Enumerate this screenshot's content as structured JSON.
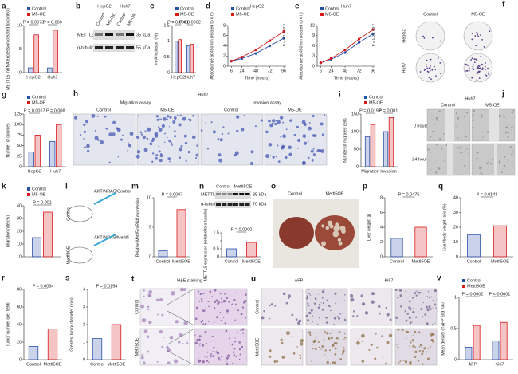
{
  "chart_data": [
    {
      "type": "bar",
      "label": "a",
      "ylabel": "METTL5 mRNA expression (related to control)",
      "categories": [
        "HepG2",
        "Huh7"
      ],
      "series": [
        {
          "name": "Control",
          "color": "#2a4fa8",
          "values": [
            1,
            1
          ]
        },
        {
          "name": "M5-OE",
          "color": "#d7191c",
          "values": [
            8,
            9
          ]
        }
      ],
      "ylim": [
        0,
        10
      ],
      "yticks": [
        0,
        5,
        10
      ],
      "legend": true,
      "annotations": [
        "P = 0.0073",
        "P = 0.006"
      ]
    },
    {
      "type": "bar",
      "label": "c",
      "ylabel": "m⁶A inclusion (%)",
      "categories": [
        "HepG2",
        "Huh7"
      ],
      "series": [
        {
          "name": "Control",
          "color": "#2a4fa8",
          "values": [
            1,
            0.85
          ]
        },
        {
          "name": "M5-OE",
          "color": "#d7191c",
          "values": [
            1.05,
            0.9
          ]
        }
      ],
      "ylim": [
        0,
        1.5
      ],
      "yticks": [
        0,
        0.5,
        1,
        1.5
      ],
      "legend": true,
      "annotations": [
        "P = 0.0001",
        "P = 0.0002"
      ]
    },
    {
      "type": "line",
      "label": "d",
      "title": "HepG2",
      "xlabel": "Time (hours)",
      "ylabel": "Absorbance at 450 nm (related to 6 h)",
      "x": [
        6,
        24,
        48,
        72,
        96
      ],
      "xlim": [
        0,
        100
      ],
      "xticks": [
        6,
        24,
        48,
        72,
        96
      ],
      "series": [
        {
          "name": "Control",
          "color": "#2a4fa8",
          "values": [
            1,
            1.5,
            2.5,
            4,
            5.5
          ]
        },
        {
          "name": "M5-OE",
          "color": "#d7191c",
          "values": [
            1,
            1.8,
            3.2,
            5,
            6.8
          ]
        }
      ],
      "ylim": [
        0,
        8
      ],
      "yticks": [
        0,
        2,
        4,
        6,
        8
      ],
      "legend": true,
      "annotations": [
        "P = 1.0 × 10⁻⁴"
      ]
    },
    {
      "type": "line",
      "label": "e",
      "title": "Huh7",
      "xlabel": "Time (hours)",
      "ylabel": "Absorbance at 450 nm (related to 6 h)",
      "x": [
        6,
        24,
        48,
        72,
        96
      ],
      "xlim": [
        0,
        100
      ],
      "xticks": [
        6,
        24,
        48,
        72,
        96
      ],
      "series": [
        {
          "name": "Control",
          "color": "#2a4fa8",
          "values": [
            1,
            2,
            4,
            7,
            9.5
          ]
        },
        {
          "name": "M5-OE",
          "color": "#d7191c",
          "values": [
            1,
            2.3,
            4.8,
            8,
            10.8
          ]
        }
      ],
      "ylim": [
        0,
        12
      ],
      "yticks": [
        0,
        3,
        6,
        9,
        12
      ],
      "legend": true,
      "annotations": [
        "P = 1.0 × 10⁻⁴"
      ]
    },
    {
      "type": "bar",
      "label": "g",
      "ylabel": "Number of colonies",
      "categories": [
        "HepG2",
        "Huh7"
      ],
      "series": [
        {
          "name": "Control",
          "color": "#2a4fa8",
          "values": [
            35,
            60
          ]
        },
        {
          "name": "M5-OE",
          "color": "#d7191c",
          "values": [
            75,
            100
          ]
        }
      ],
      "ylim": [
        0,
        125
      ],
      "yticks": [
        0,
        25,
        50,
        75,
        100,
        125
      ],
      "legend": true,
      "annotations": [
        "P = 0.0017",
        "P = 0.008"
      ]
    },
    {
      "type": "bar",
      "label": "i",
      "ylabel": "Number of migrated cells",
      "categories": [
        "Migration",
        "Invasion"
      ],
      "series": [
        {
          "name": "Control",
          "color": "#2a4fa8",
          "values": [
            85,
            100
          ]
        },
        {
          "name": "M5-OE",
          "color": "#d7191c",
          "values": [
            120,
            140
          ]
        }
      ],
      "ylim": [
        0,
        150
      ],
      "yticks": [
        0,
        50,
        100,
        150
      ],
      "legend": true,
      "annotations": [
        "P = 0.0192",
        "P = 0.001"
      ]
    },
    {
      "type": "bar",
      "label": "k",
      "ylabel": "Migration rate (%)",
      "categories": [
        null
      ],
      "series": [
        {
          "name": "Control",
          "color": "#2a4fa8",
          "values": [
            15
          ]
        },
        {
          "name": "M5-OE",
          "color": "#d7191c",
          "values": [
            35
          ]
        }
      ],
      "ylim": [
        0,
        40
      ],
      "yticks": [
        0,
        10,
        20,
        30,
        40
      ],
      "legend": true,
      "annotations": [
        "P = 0.001"
      ]
    },
    {
      "type": "bar",
      "label": "m",
      "ylabel": "Relative Mettl5 mRNA expression",
      "categories": [
        "Control",
        "Mettl5OE"
      ],
      "values": [
        1,
        8
      ],
      "colors": [
        "#2a4fa8",
        "#d7191c"
      ],
      "ylim": [
        0,
        10
      ],
      "yticks": [
        0,
        5,
        10
      ],
      "annotations": [
        "P = 0.0007"
      ]
    },
    {
      "type": "bar",
      "ylabel": "METTL5 expression (related to α-tubulin)",
      "categories": [
        "Control",
        "Mettl5OE"
      ],
      "values": [
        0.5,
        0.9
      ],
      "colors": [
        "#2a4fa8",
        "#d7191c"
      ],
      "ylim": [
        0,
        1.5
      ],
      "yticks": [
        0,
        0.5,
        1,
        1.5
      ],
      "annotations": [
        "P = 0.0000"
      ]
    },
    {
      "type": "bar",
      "label": "p",
      "ylabel": "Liver weight (g)",
      "categories": [
        "Control",
        "Mettl5OE"
      ],
      "values": [
        2.5,
        4
      ],
      "colors": [
        "#2a4fa8",
        "#d7191c"
      ],
      "ylim": [
        0,
        8
      ],
      "yticks": [
        0,
        2,
        4,
        6,
        8
      ],
      "annotations": [
        "P = 0.0475"
      ]
    },
    {
      "type": "bar",
      "label": "q",
      "ylabel": "Liver/body weight ratio (%)",
      "categories": [
        "Control",
        "Mettl5OE"
      ],
      "values": [
        15,
        21
      ],
      "colors": [
        "#2a4fa8",
        "#d7191c"
      ],
      "ylim": [
        0,
        40
      ],
      "yticks": [
        0,
        10,
        20,
        30,
        40
      ],
      "annotations": [
        "P = 0.0143"
      ]
    },
    {
      "type": "bar",
      "label": "r",
      "ylabel": "Tumor number (per field)",
      "categories": [
        "Control",
        "Mettl5OE"
      ],
      "values": [
        15,
        35
      ],
      "colors": [
        "#2a4fa8",
        "#d7191c"
      ],
      "ylim": [
        0,
        80
      ],
      "yticks": [
        0,
        20,
        40,
        60,
        80
      ],
      "annotations": [
        "P = 0.0034"
      ]
    },
    {
      "type": "bar",
      "label": "s",
      "ylabel": "Greatest tumor diameter (mm)",
      "categories": [
        "Control",
        "Mettl5OE"
      ],
      "values": [
        1.2,
        2
      ],
      "colors": [
        "#2a4fa8",
        "#d7191c"
      ],
      "ylim": [
        0,
        4
      ],
      "yticks": [
        0,
        1,
        2,
        3,
        4
      ],
      "annotations": [
        "P = 0.0154"
      ]
    },
    {
      "type": "bar",
      "label": "v",
      "ylabel": "Mean density of AFP and Ki67",
      "categories": [
        "AFP",
        "Ki67"
      ],
      "series": [
        {
          "name": "Control",
          "color": "#2a4fa8",
          "values": [
            0.2,
            0.3
          ]
        },
        {
          "name": "Mettl5OE",
          "color": "#d7191c",
          "values": [
            0.55,
            0.6
          ]
        }
      ],
      "ylim": [
        0,
        1
      ],
      "yticks": [
        0,
        0.5,
        1
      ],
      "legend": true,
      "annotations": [
        "P = 0.0002",
        "P < 0.0001"
      ]
    }
  ],
  "panels": {
    "b": {
      "label": "b",
      "cell_lines": [
        "HepG2",
        "Huh7"
      ],
      "groups": [
        "Control",
        "M5-OE",
        "Control",
        "M5-OE"
      ],
      "proteins": [
        "METTL5",
        "α-tubulin"
      ],
      "markers": [
        "35 kDa",
        "55 kDa"
      ]
    },
    "f": {
      "label": "f",
      "columns": [
        "Control",
        "M5-OE"
      ],
      "rows": [
        "HepG2",
        "Huh7"
      ]
    },
    "h": {
      "label": "h",
      "title": "Huh7",
      "assays": [
        "Migration assay",
        "Invasion assay"
      ],
      "groups": [
        "Control",
        "M5-OE",
        "Control",
        "M5-OE"
      ]
    },
    "j": {
      "label": "j",
      "title": "Huh7",
      "columns": [
        "Control",
        "M5-OE"
      ],
      "rows": [
        "0 hours",
        "24 hours"
      ]
    },
    "l": {
      "label": "l",
      "constructs": [
        "AKT/NRAS/Control",
        "AKT/NRAS/Mettl5"
      ],
      "groups": [
        "Control",
        "Mettl5OE"
      ]
    },
    "n": {
      "label": "n",
      "groups": [
        "Control",
        "Mettl5OE"
      ],
      "proteins": [
        "METTL5",
        "α-tubulin"
      ],
      "markers": [
        "35 kDa",
        "70 kDa"
      ]
    },
    "o": {
      "label": "o",
      "groups": [
        "Control",
        "Mettl5OE"
      ]
    },
    "t": {
      "label": "t",
      "title": "H&E staining",
      "rows": [
        "Control",
        "Mettl5OE"
      ]
    },
    "u": {
      "label": "u",
      "stains": [
        "AFP",
        "Ki67"
      ],
      "rows": [
        "Control",
        "Mettl5OE"
      ]
    }
  }
}
